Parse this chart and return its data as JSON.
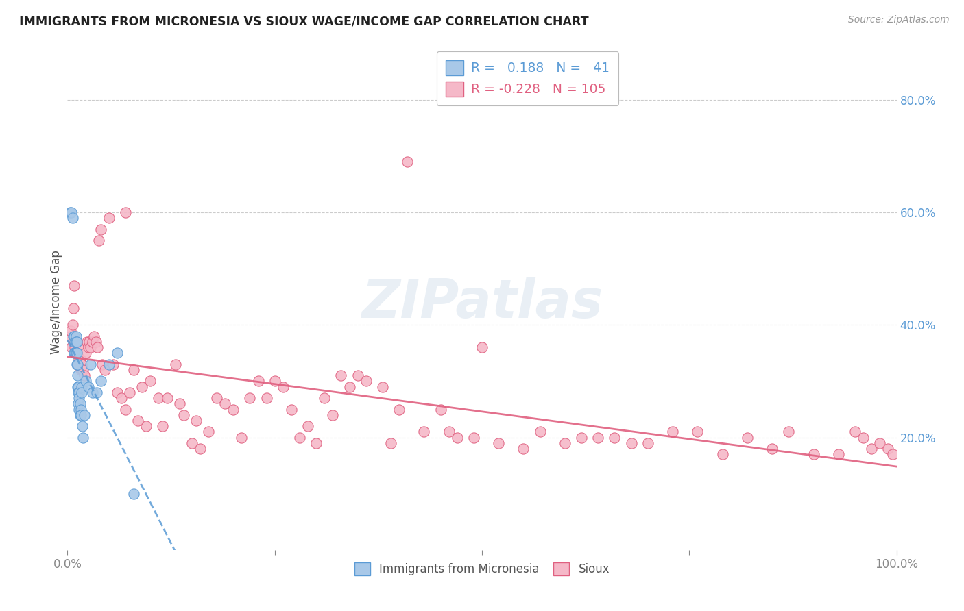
{
  "title": "IMMIGRANTS FROM MICRONESIA VS SIOUX WAGE/INCOME GAP CORRELATION CHART",
  "source": "Source: ZipAtlas.com",
  "ylabel": "Wage/Income Gap",
  "ylabel_right_ticks": [
    "20.0%",
    "40.0%",
    "60.0%",
    "80.0%"
  ],
  "ylabel_right_values": [
    0.2,
    0.4,
    0.6,
    0.8
  ],
  "xticks": [
    0.0,
    0.25,
    0.5,
    0.75,
    1.0
  ],
  "xticklabels": [
    "0.0%",
    "",
    "",
    "",
    "100.0%"
  ],
  "legend_label1": "Immigrants from Micronesia",
  "legend_label2": "Sioux",
  "legend_R1": "0.188",
  "legend_N1": "41",
  "legend_R2": "-0.228",
  "legend_N2": "105",
  "color_blue_fill": "#a8c8e8",
  "color_blue_edge": "#5b9bd5",
  "color_pink_fill": "#f5b8c8",
  "color_pink_edge": "#e06080",
  "color_blue_line": "#5b9bd5",
  "color_pink_line": "#e06080",
  "watermark_text": "ZIPatlas",
  "xlim": [
    0.0,
    1.0
  ],
  "ylim": [
    0.0,
    0.88
  ],
  "blue_x": [
    0.003,
    0.005,
    0.006,
    0.007,
    0.008,
    0.008,
    0.009,
    0.009,
    0.01,
    0.01,
    0.01,
    0.011,
    0.011,
    0.011,
    0.012,
    0.012,
    0.012,
    0.013,
    0.013,
    0.013,
    0.014,
    0.014,
    0.014,
    0.015,
    0.015,
    0.016,
    0.016,
    0.017,
    0.017,
    0.018,
    0.019,
    0.02,
    0.022,
    0.025,
    0.028,
    0.03,
    0.035,
    0.04,
    0.05,
    0.06,
    0.08
  ],
  "blue_y": [
    0.6,
    0.6,
    0.59,
    0.38,
    0.38,
    0.35,
    0.37,
    0.35,
    0.38,
    0.37,
    0.35,
    0.37,
    0.35,
    0.33,
    0.33,
    0.31,
    0.29,
    0.29,
    0.28,
    0.26,
    0.28,
    0.27,
    0.25,
    0.26,
    0.24,
    0.25,
    0.24,
    0.29,
    0.28,
    0.22,
    0.2,
    0.24,
    0.3,
    0.29,
    0.33,
    0.28,
    0.28,
    0.3,
    0.33,
    0.35,
    0.1
  ],
  "pink_x": [
    0.003,
    0.004,
    0.005,
    0.006,
    0.007,
    0.008,
    0.009,
    0.01,
    0.011,
    0.012,
    0.013,
    0.014,
    0.015,
    0.016,
    0.017,
    0.018,
    0.019,
    0.02,
    0.022,
    0.024,
    0.025,
    0.026,
    0.028,
    0.03,
    0.032,
    0.034,
    0.036,
    0.038,
    0.04,
    0.042,
    0.045,
    0.05,
    0.055,
    0.06,
    0.065,
    0.07,
    0.075,
    0.08,
    0.09,
    0.095,
    0.1,
    0.11,
    0.12,
    0.13,
    0.14,
    0.15,
    0.16,
    0.17,
    0.18,
    0.19,
    0.2,
    0.21,
    0.22,
    0.23,
    0.24,
    0.25,
    0.26,
    0.27,
    0.28,
    0.29,
    0.3,
    0.31,
    0.32,
    0.33,
    0.34,
    0.35,
    0.36,
    0.38,
    0.39,
    0.4,
    0.41,
    0.43,
    0.45,
    0.46,
    0.47,
    0.49,
    0.5,
    0.52,
    0.55,
    0.57,
    0.6,
    0.62,
    0.64,
    0.66,
    0.68,
    0.7,
    0.73,
    0.76,
    0.79,
    0.82,
    0.85,
    0.87,
    0.9,
    0.93,
    0.95,
    0.96,
    0.97,
    0.98,
    0.99,
    0.995,
    0.07,
    0.085,
    0.115,
    0.135,
    0.155
  ],
  "pink_y": [
    0.38,
    0.39,
    0.36,
    0.4,
    0.43,
    0.47,
    0.36,
    0.37,
    0.35,
    0.33,
    0.36,
    0.34,
    0.34,
    0.32,
    0.33,
    0.32,
    0.32,
    0.31,
    0.35,
    0.37,
    0.36,
    0.37,
    0.36,
    0.37,
    0.38,
    0.37,
    0.36,
    0.55,
    0.57,
    0.33,
    0.32,
    0.59,
    0.33,
    0.28,
    0.27,
    0.6,
    0.28,
    0.32,
    0.29,
    0.22,
    0.3,
    0.27,
    0.27,
    0.33,
    0.24,
    0.19,
    0.18,
    0.21,
    0.27,
    0.26,
    0.25,
    0.2,
    0.27,
    0.3,
    0.27,
    0.3,
    0.29,
    0.25,
    0.2,
    0.22,
    0.19,
    0.27,
    0.24,
    0.31,
    0.29,
    0.31,
    0.3,
    0.29,
    0.19,
    0.25,
    0.69,
    0.21,
    0.25,
    0.21,
    0.2,
    0.2,
    0.36,
    0.19,
    0.18,
    0.21,
    0.19,
    0.2,
    0.2,
    0.2,
    0.19,
    0.19,
    0.21,
    0.21,
    0.17,
    0.2,
    0.18,
    0.21,
    0.17,
    0.17,
    0.21,
    0.2,
    0.18,
    0.19,
    0.18,
    0.17,
    0.25,
    0.23,
    0.22,
    0.26,
    0.23
  ]
}
